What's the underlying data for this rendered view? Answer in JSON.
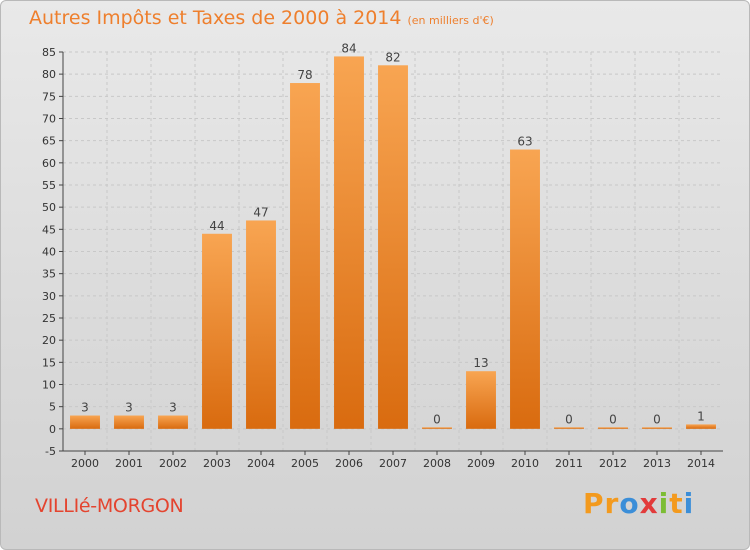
{
  "header": {
    "title": "Autres Impôts et Taxes de 2000 à 2014",
    "unit": "(en milliers d'€)"
  },
  "footer": {
    "town": "VILLIé-MORGON",
    "logo": [
      "P",
      "r",
      "o",
      "x",
      "i",
      "t",
      "i"
    ],
    "logo_colors": [
      "#f39a1e",
      "#f39a1e",
      "#3b8ed8",
      "#e23b3b",
      "#7cbd34",
      "#f39a1e",
      "#3b8ed8"
    ]
  },
  "chart_data": {
    "type": "bar",
    "categories": [
      "2000",
      "2001",
      "2002",
      "2003",
      "2004",
      "2005",
      "2006",
      "2007",
      "2008",
      "2009",
      "2010",
      "2011",
      "2012",
      "2013",
      "2014"
    ],
    "values": [
      3,
      3,
      3,
      44,
      47,
      78,
      84,
      82,
      0,
      13,
      63,
      0,
      0,
      0,
      1
    ],
    "title": "Autres Impôts et Taxes de 2000 à 2014",
    "xlabel": "",
    "ylabel": "",
    "ylim": [
      -5,
      85
    ],
    "yticks": [
      -5,
      0,
      5,
      10,
      15,
      20,
      25,
      30,
      35,
      40,
      45,
      50,
      55,
      60,
      65,
      70,
      75,
      80,
      85
    ],
    "grid": true,
    "colors": {
      "bar_light": "#f8a552",
      "bar_dark": "#d96b0f",
      "axis": "#444444",
      "grid": "#c8c8c8"
    }
  }
}
